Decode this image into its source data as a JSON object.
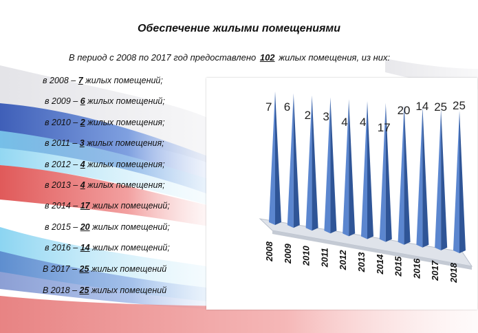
{
  "header": {
    "title": "Обеспечение жилыми помещениями",
    "subtitle_prefix": "В период с 2008 по 2017 год предоставлено",
    "subtitle_number": "102",
    "subtitle_suffix": "жилых помещения, из них:"
  },
  "items": [
    {
      "prefix": "в 2008 – ",
      "count": "7",
      "suffix": " жилых помещений;"
    },
    {
      "prefix": "в 2009 – ",
      "count": "6",
      "suffix": " жилых помещений;"
    },
    {
      "prefix": "в 2010 – ",
      "count": "2",
      "suffix": " жилых помещения;"
    },
    {
      "prefix": "в 2011 – ",
      "count": "3",
      "suffix": " жилых помещения;"
    },
    {
      "prefix": "в 2012 – ",
      "count": "4",
      "suffix": " жилых помещения;"
    },
    {
      "prefix": "в 2013 – ",
      "count": "4",
      "suffix": " жилых помещения;"
    },
    {
      "prefix": "в 2014 – ",
      "count": "17",
      "suffix": " жилых помещений;"
    },
    {
      "prefix": "в 2015 – ",
      "count": "20",
      "suffix": " жилых помещений;"
    },
    {
      "prefix": "в 2016 – ",
      "count": "14",
      "suffix": " жилых помещений;"
    },
    {
      "prefix": "В 2017 – ",
      "count": "25",
      "suffix": " жилых помещений"
    },
    {
      "prefix": "В 2018 – ",
      "count": "25",
      "suffix": " жилых помещений"
    }
  ],
  "chart_data": {
    "type": "bar",
    "categories": [
      "2008",
      "2009",
      "2010",
      "2011",
      "2012",
      "2013",
      "2014",
      "2015",
      "2016",
      "2017",
      "2018"
    ],
    "values": [
      7,
      6,
      2,
      3,
      4,
      4,
      17,
      20,
      14,
      25,
      25
    ],
    "labels": [
      "7",
      "6",
      "2",
      "3",
      "4",
      "4",
      "17",
      "20",
      "14",
      "25",
      "25"
    ],
    "bar_shape": "3d-cone",
    "bar_color": "#4472c4",
    "grid": false,
    "legend": "none"
  }
}
